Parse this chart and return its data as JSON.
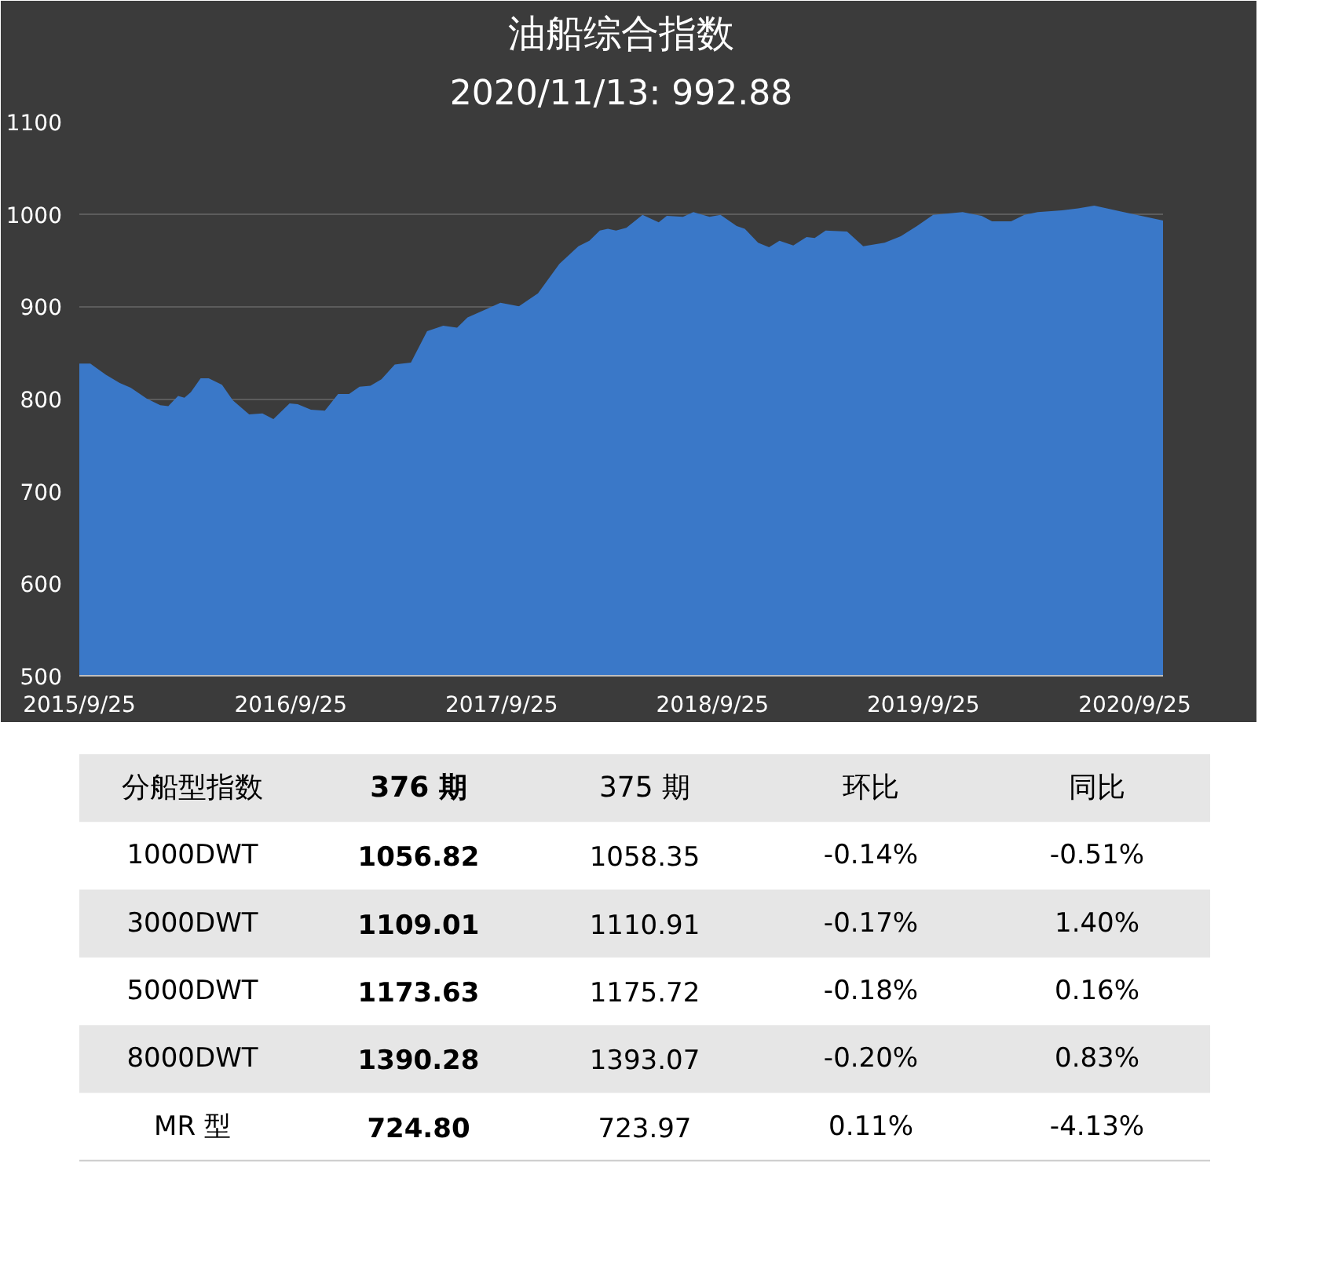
{
  "chart_data": [
    {
      "type": "area",
      "title": "油船综合指数",
      "subtitle": "2020/11/13: 992.88",
      "color": "#3a78c8",
      "grid": "y",
      "x": [
        "2015-09-25",
        "2015-10-14",
        "2015-11-10",
        "2015-12-04",
        "2015-12-23",
        "2016-01-20",
        "2016-02-12",
        "2016-02-26",
        "2016-03-14",
        "2016-03-25",
        "2016-04-05",
        "2016-04-22",
        "2016-05-06",
        "2016-05-29",
        "2016-06-17",
        "2016-07-15",
        "2016-08-07",
        "2016-08-26",
        "2016-09-23",
        "2016-10-07",
        "2016-10-30",
        "2016-11-23",
        "2016-12-16",
        "2017-01-04",
        "2017-01-22",
        "2017-02-10",
        "2017-03-01",
        "2017-03-24",
        "2017-04-21",
        "2017-05-19",
        "2017-06-16",
        "2017-07-10",
        "2017-07-28",
        "2017-08-30",
        "2017-09-23",
        "2017-10-25",
        "2017-11-27",
        "2018-01-03",
        "2018-02-05",
        "2018-02-24",
        "2018-03-14",
        "2018-03-28",
        "2018-04-11",
        "2018-04-29",
        "2018-05-27",
        "2018-06-24",
        "2018-07-08",
        "2018-08-05",
        "2018-08-23",
        "2018-09-20",
        "2018-10-09",
        "2018-11-06",
        "2018-11-20",
        "2018-12-13",
        "2019-01-01",
        "2019-01-19",
        "2019-02-12",
        "2019-03-07",
        "2019-03-21",
        "2019-04-09",
        "2019-05-16",
        "2019-06-13",
        "2019-07-20",
        "2019-08-17",
        "2019-09-14",
        "2019-10-12",
        "2019-12-02",
        "2020-01-04",
        "2020-01-22",
        "2020-02-24",
        "2020-03-18",
        "2020-04-10",
        "2020-05-22",
        "2020-06-19",
        "2020-07-17",
        "2020-09-06",
        "2020-11-13"
      ],
      "values": [
        838,
        838,
        826,
        817,
        812,
        800,
        793,
        792,
        803,
        801,
        807,
        822,
        822,
        815,
        798,
        783,
        784,
        778,
        795,
        794,
        788,
        787,
        805,
        805,
        813,
        814,
        821,
        837,
        839,
        873,
        879,
        877,
        888,
        897,
        904,
        900,
        914,
        946,
        965,
        971,
        982,
        984,
        982,
        985,
        999,
        991,
        998,
        997,
        1002,
        997,
        999,
        987,
        984,
        969,
        964,
        971,
        966,
        975,
        974,
        982,
        981,
        965,
        969,
        976,
        987,
        999,
        1002,
        998,
        992,
        992,
        999,
        1002,
        1004,
        1006,
        1009,
        1002,
        993
      ],
      "xlim": [
        "2015-09-25",
        "2020-11-13"
      ],
      "xticks": [
        {
          "value": "2015-09-25",
          "label": "2015/9/25"
        },
        {
          "value": "2016-09-25",
          "label": "2016/9/25"
        },
        {
          "value": "2017-09-25",
          "label": "2017/9/25"
        },
        {
          "value": "2018-09-25",
          "label": "2018/9/25"
        },
        {
          "value": "2019-09-25",
          "label": "2019/9/25"
        },
        {
          "value": "2020-09-25",
          "label": "2020/9/25"
        }
      ],
      "ylim": [
        500,
        1100
      ],
      "yticks": [
        500,
        600,
        700,
        800,
        900,
        1000,
        1100
      ]
    },
    {
      "type": "other",
      "categories": [
        "分船型指数",
        "376 期",
        "375 期",
        "环比",
        "同比"
      ],
      "cell_labels": [
        [
          "1000DWT",
          "1056.82",
          "1058.35",
          "-0.14%",
          "-0.51%"
        ],
        [
          "3000DWT",
          "1109.01",
          "1110.91",
          "-0.17%",
          "1.40%"
        ],
        [
          "5000DWT",
          "1173.63",
          "1175.72",
          "-0.18%",
          "0.16%"
        ],
        [
          "8000DWT",
          "1390.28",
          "1393.07",
          "-0.20%",
          "0.83%"
        ],
        [
          "MR 型",
          "724.80",
          "723.97",
          "0.11%",
          "-4.13%"
        ]
      ]
    }
  ]
}
